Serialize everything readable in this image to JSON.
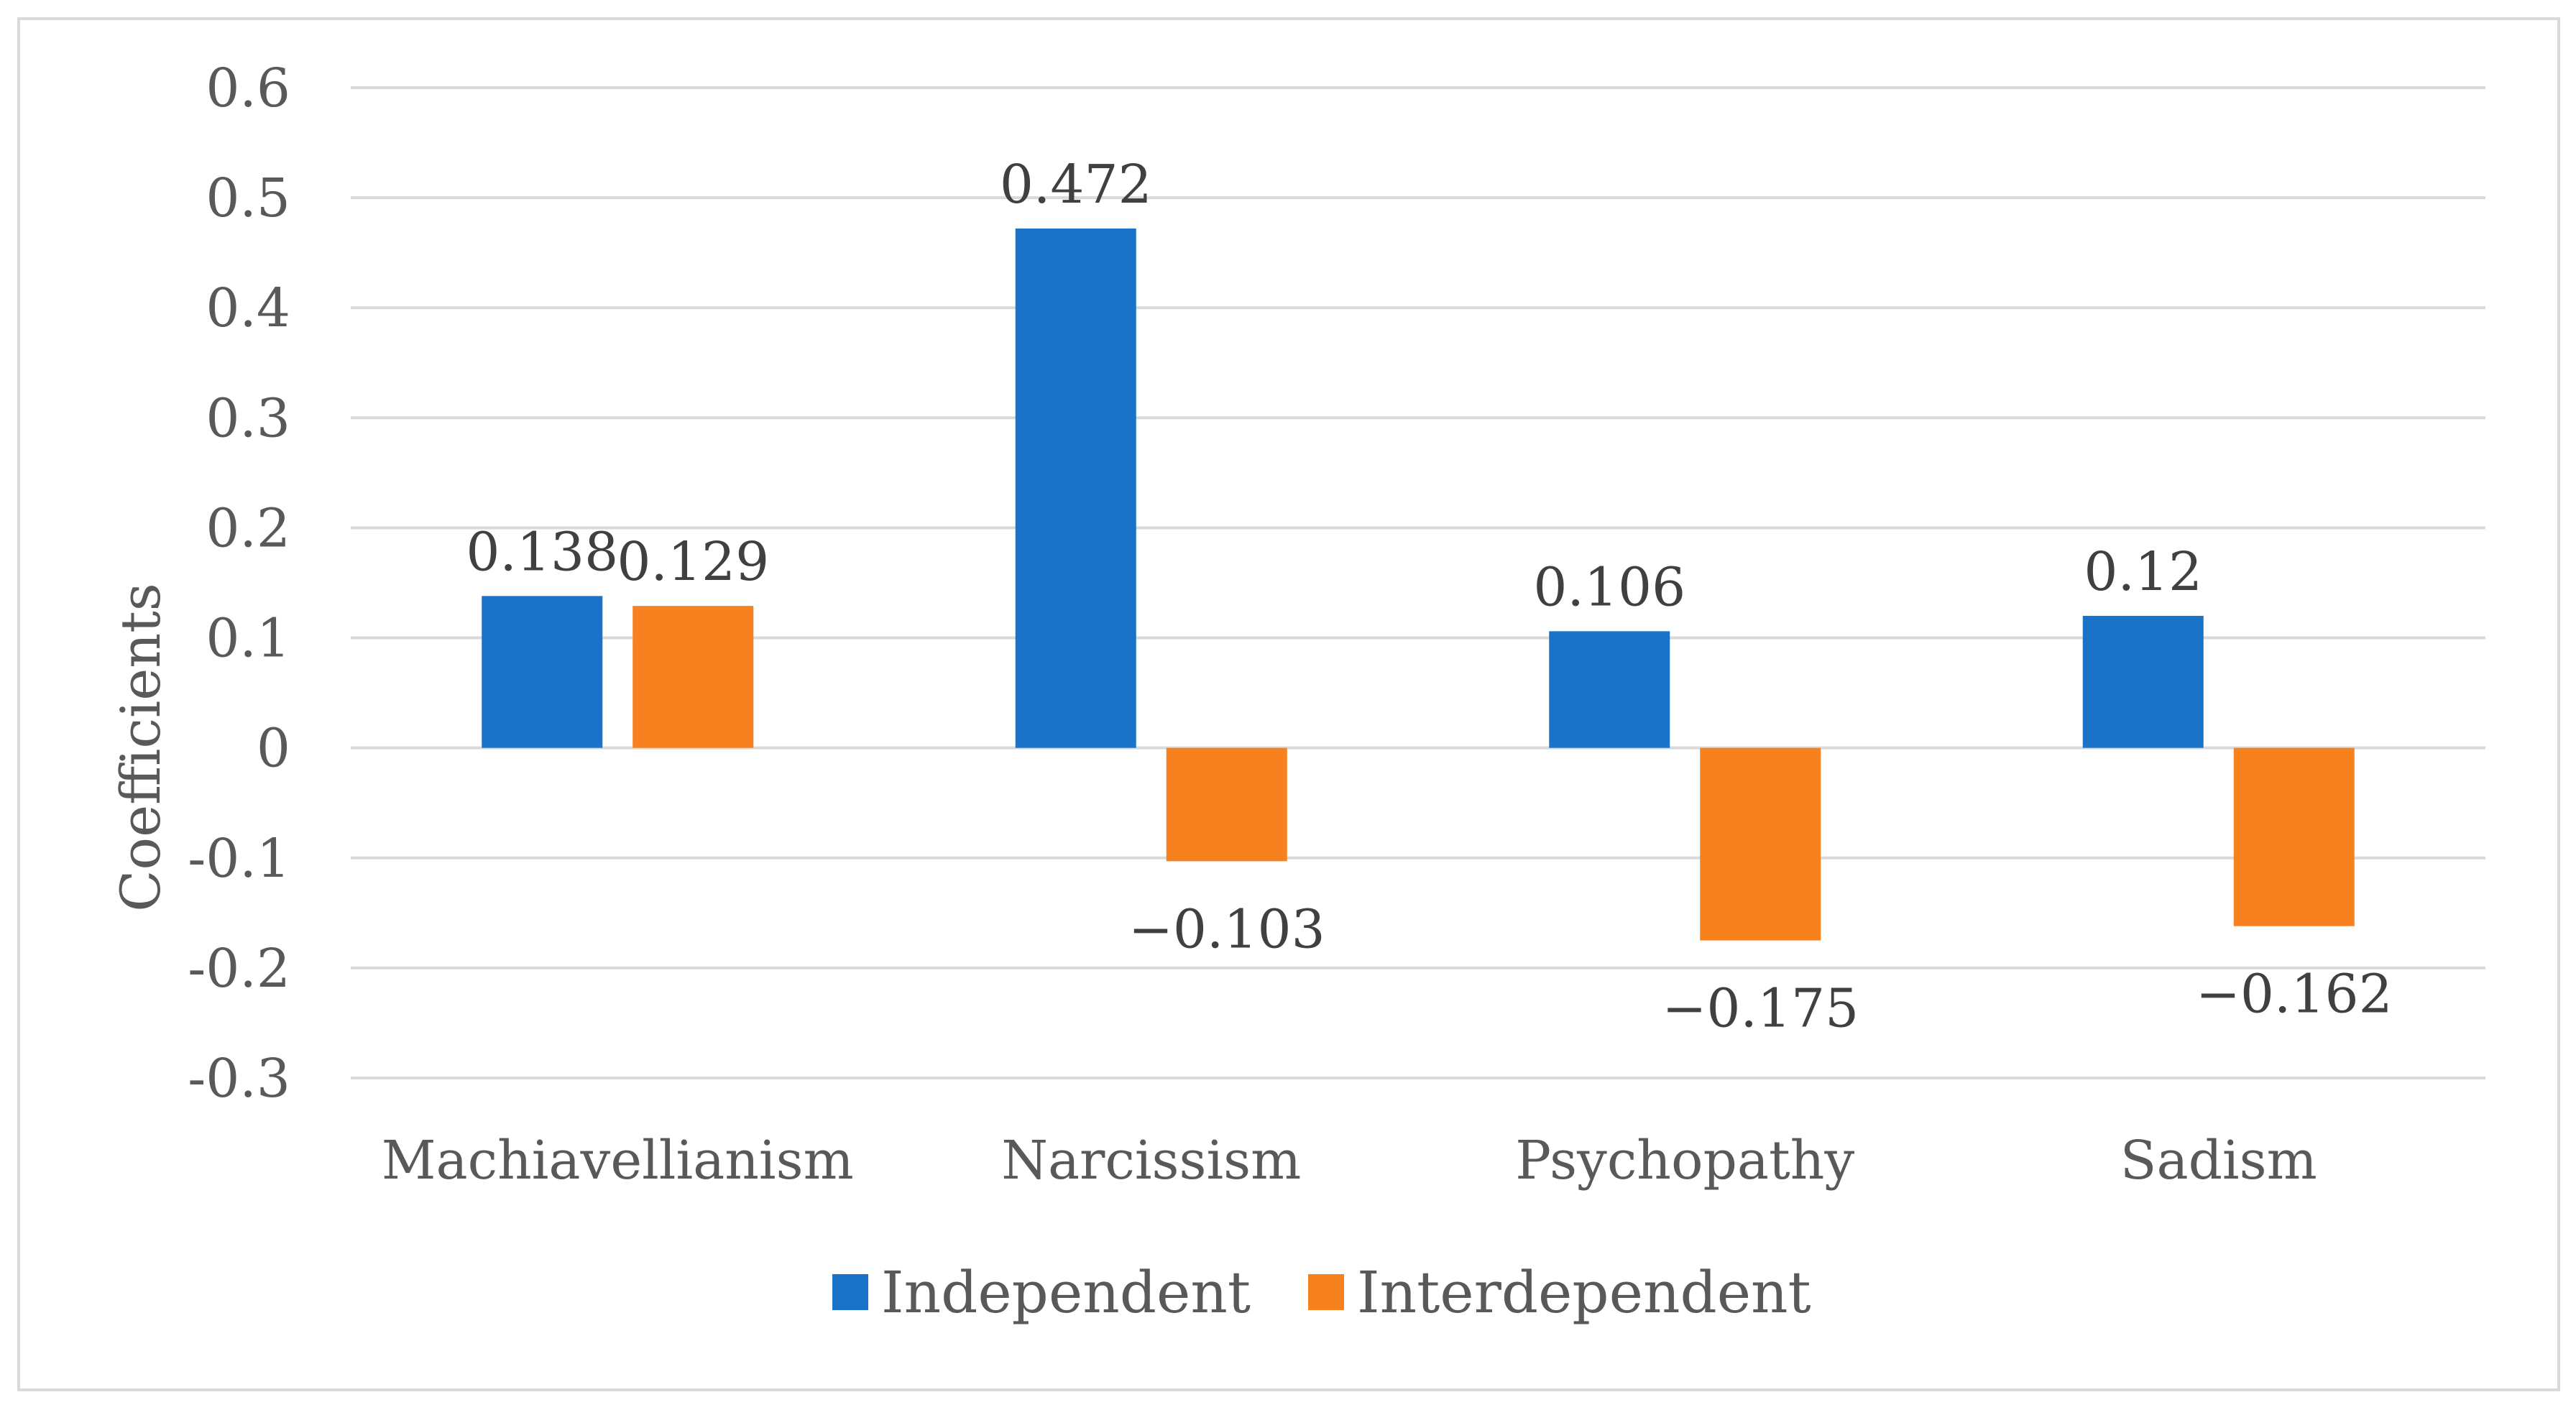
{
  "chart_data": {
    "type": "bar",
    "title": "",
    "xlabel": "",
    "ylabel": "Coefficients",
    "ylim": [
      -0.3,
      0.6
    ],
    "yticks": [
      0.6,
      0.5,
      0.4,
      0.3,
      0.2,
      0.1,
      0,
      -0.1,
      -0.2,
      -0.3
    ],
    "ytick_labels": [
      "0.6",
      "0.5",
      "0.4",
      "0.3",
      "0.2",
      "0.1",
      "0",
      "-0.1",
      "-0.2",
      "-0.3"
    ],
    "grid": true,
    "legend_position": "bottom",
    "categories": [
      "Machiavellianism",
      "Narcissism",
      "Psychopathy",
      "Sadism"
    ],
    "series": [
      {
        "name": "Independent",
        "color": "#1a73c8",
        "values": [
          0.138,
          0.472,
          0.106,
          0.12
        ],
        "labels": [
          "0.138",
          "0.472",
          "0.106",
          "0.12"
        ]
      },
      {
        "name": "Interdependent",
        "color": "#f7801f",
        "values": [
          0.129,
          -0.103,
          -0.175,
          -0.162
        ],
        "labels": [
          "0.129",
          "−0.103",
          "−0.175",
          "−0.162"
        ]
      }
    ]
  }
}
